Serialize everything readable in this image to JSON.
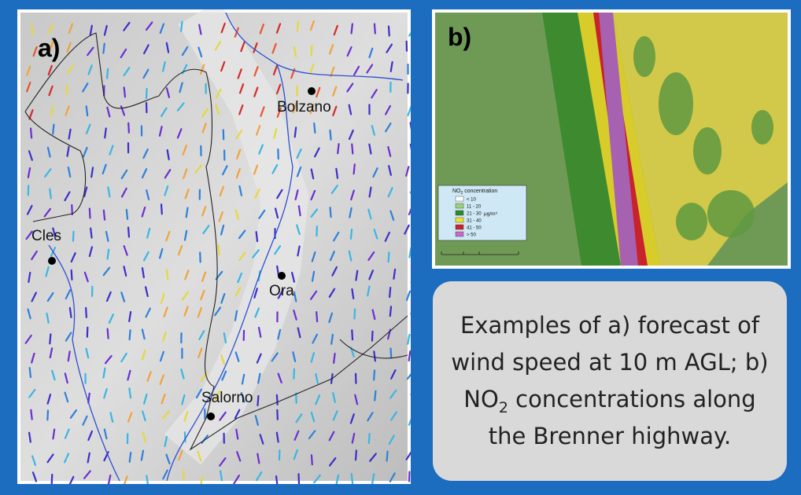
{
  "panel_a": {
    "label": "a)",
    "cities": [
      "Bolzano",
      "Cles",
      "Ora",
      "Salorno"
    ]
  },
  "panel_b": {
    "label": "b)",
    "legend": {
      "title_prefix": "NO",
      "title_sub": "2",
      "title_suffix": " concentration",
      "items": [
        "< 10",
        "11 - 20",
        "21 - 30",
        "31 - 40",
        "41 - 50",
        "> 50"
      ],
      "unit": "µg/m³"
    }
  },
  "caption": {
    "before": "Examples of a) forecast of wind speed at 10 m AGL; b) NO",
    "subscript": "2",
    "after": " concentrations along the Brenner highway."
  }
}
